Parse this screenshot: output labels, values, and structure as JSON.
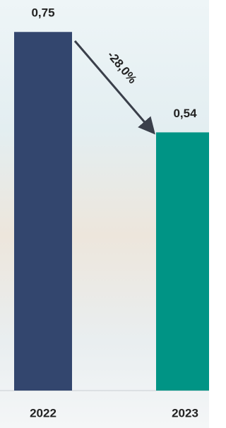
{
  "chart_data": {
    "type": "bar",
    "categories": [
      "2022",
      "2023"
    ],
    "values": [
      0.75,
      0.54
    ],
    "value_labels": [
      "0,75",
      "0,54"
    ],
    "colors": [
      "#33466e",
      "#009485"
    ],
    "annotation": "-28,0%"
  }
}
